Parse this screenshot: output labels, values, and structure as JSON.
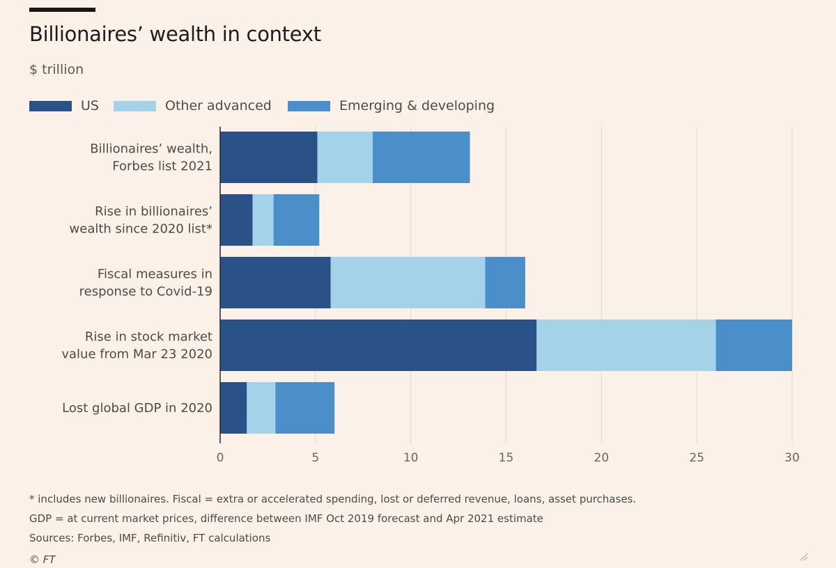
{
  "header": {
    "title": "Billionaires’ wealth in context",
    "unit": "$ trillion"
  },
  "colors": {
    "background": "#fbf1e8",
    "us": "#2b5288",
    "other_advanced": "#a4d2e8",
    "emerging": "#4a8fca",
    "gridline": "#e4d8cf"
  },
  "chart_data": {
    "type": "bar",
    "orientation": "horizontal",
    "stacked": true,
    "title": "Billionaires’ wealth in context",
    "unit": "$ trillion",
    "categories": [
      [
        "Billionaires’ wealth,",
        "Forbes list 2021"
      ],
      [
        "Rise in billionaires’",
        "wealth since 2020 list*"
      ],
      [
        "Fiscal measures in",
        "response to Covid-19"
      ],
      [
        "Rise in stock market",
        "value from Mar 23 2020"
      ],
      [
        "Lost global GDP in 2020"
      ]
    ],
    "series": [
      {
        "name": "US",
        "color_key": "us",
        "values": [
          5.1,
          1.7,
          5.8,
          16.6,
          1.4
        ]
      },
      {
        "name": "Other advanced",
        "color_key": "other_advanced",
        "values": [
          2.9,
          1.1,
          8.1,
          9.4,
          1.5
        ]
      },
      {
        "name": "Emerging & developing",
        "color_key": "emerging",
        "values": [
          5.1,
          2.4,
          2.1,
          4.0,
          3.1
        ]
      }
    ],
    "xlim": [
      0,
      30
    ],
    "xticks": [
      0,
      5,
      10,
      15,
      20,
      25,
      30
    ],
    "grid": true,
    "legend": "top-left"
  },
  "footer": {
    "notes": [
      "* includes new billionaires. Fiscal = extra or accelerated spending, lost or deferred revenue, loans, asset purchases.",
      "GDP = at current market prices, difference between IMF Oct 2019 forecast and Apr 2021 estimate",
      "Sources: Forbes, IMF, Refinitiv, FT calculations"
    ],
    "copyright": "© FT"
  }
}
